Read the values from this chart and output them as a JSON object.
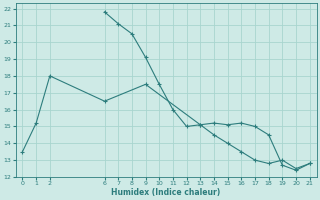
{
  "title": "",
  "xlabel": "Humidex (Indice chaleur)",
  "ylabel": "",
  "bg_color": "#ceeae6",
  "grid_color": "#a8d5cf",
  "line_color": "#2d7d7d",
  "xlim": [
    -0.5,
    21.5
  ],
  "ylim": [
    12,
    22.3
  ],
  "xticks": [
    0,
    1,
    2,
    6,
    7,
    8,
    9,
    10,
    11,
    12,
    13,
    14,
    15,
    16,
    17,
    18,
    19,
    20,
    21
  ],
  "yticks": [
    12,
    13,
    14,
    15,
    16,
    17,
    18,
    19,
    20,
    21,
    22
  ],
  "line1_x": [
    6,
    7,
    8,
    9,
    10,
    11,
    12,
    13,
    14,
    15,
    16,
    17,
    18,
    19,
    20,
    21
  ],
  "line1_y": [
    21.8,
    21.1,
    20.5,
    19.1,
    17.5,
    16.0,
    15.0,
    15.1,
    14.5,
    14.0,
    13.5,
    13.0,
    12.8,
    13.0,
    12.5,
    12.8
  ],
  "line2_x": [
    0,
    1,
    2,
    6,
    9,
    13,
    14,
    15,
    16,
    17,
    18,
    19,
    20,
    21
  ],
  "line2_y": [
    13.5,
    15.2,
    18.0,
    16.5,
    17.5,
    15.1,
    15.2,
    15.1,
    15.2,
    15.0,
    14.5,
    12.7,
    12.4,
    12.8
  ]
}
